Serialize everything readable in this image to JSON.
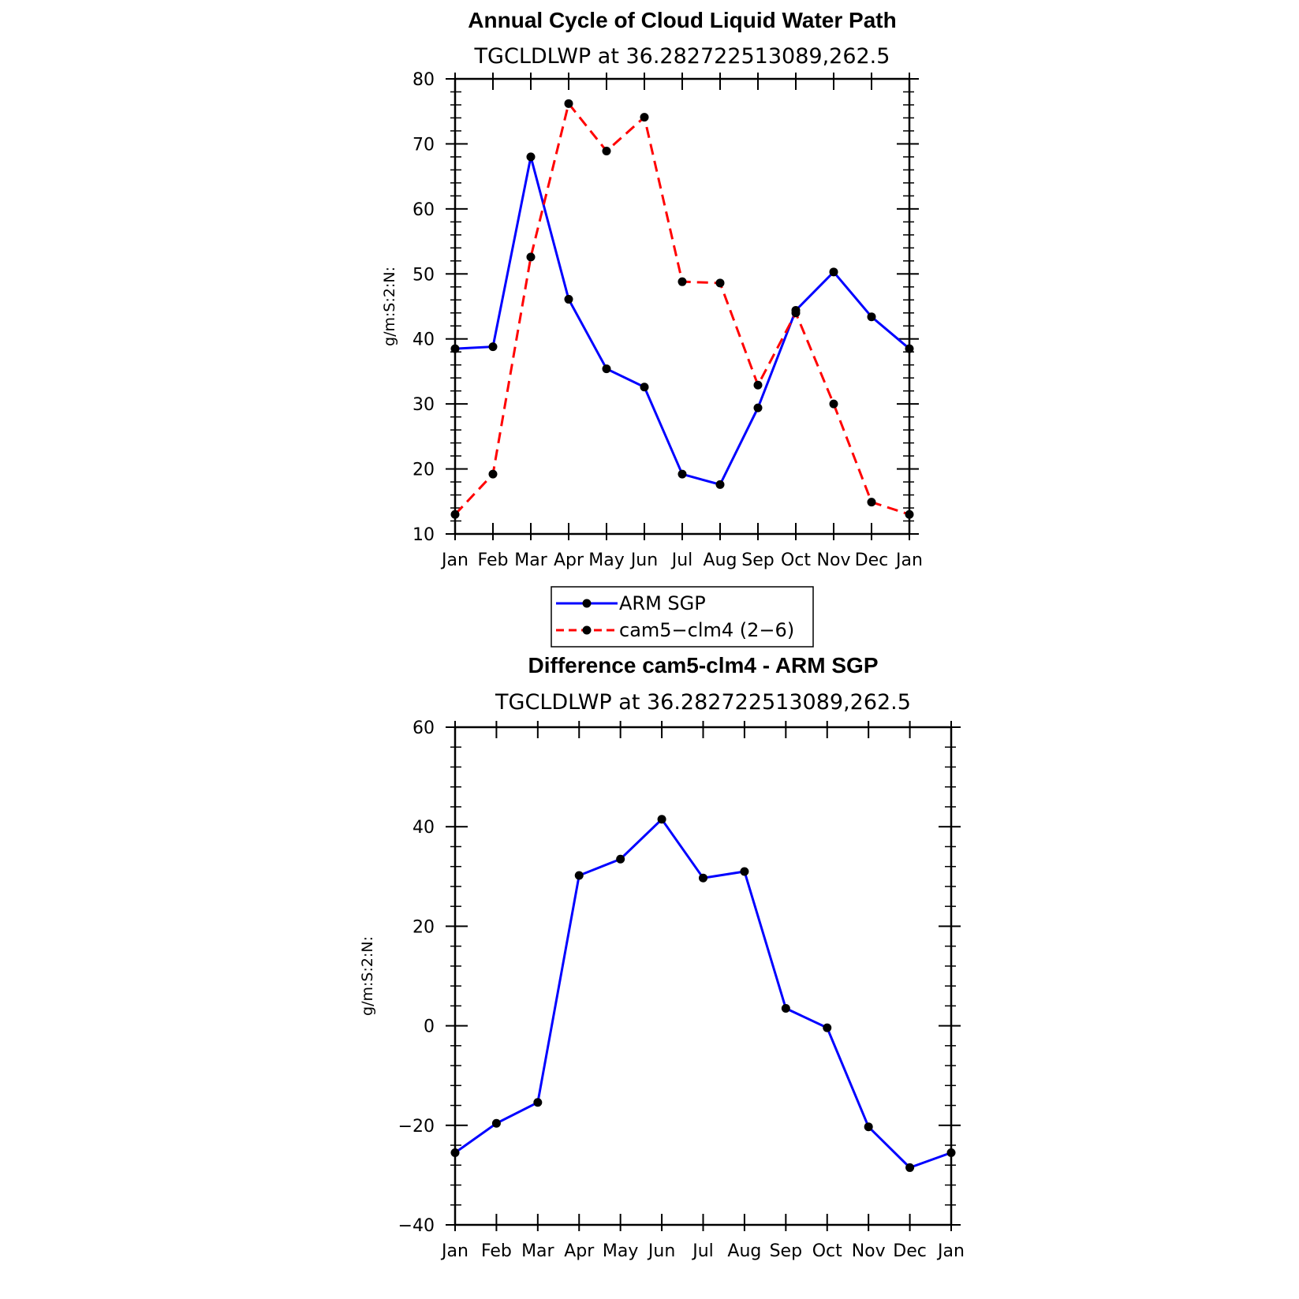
{
  "chart_data": [
    {
      "type": "line",
      "title": "Annual Cycle of Cloud Liquid Water Path",
      "subtitle": "TGCLDLWP at 36.282722513089,262.5",
      "xlabel": "",
      "ylabel": "g/m:S:2:N:",
      "categories": [
        "Jan",
        "Feb",
        "Mar",
        "Apr",
        "May",
        "Jun",
        "Jul",
        "Aug",
        "Sep",
        "Oct",
        "Nov",
        "Dec",
        "Jan"
      ],
      "ylim": [
        10,
        80
      ],
      "yticks": [
        10,
        20,
        30,
        40,
        50,
        60,
        70,
        80
      ],
      "series": [
        {
          "name": "ARM SGP",
          "color": "#0000ff",
          "dash": "solid",
          "values": [
            38.5,
            38.8,
            68.0,
            46.1,
            35.4,
            32.6,
            19.2,
            17.6,
            29.4,
            44.4,
            50.3,
            43.4,
            38.5
          ]
        },
        {
          "name": "cam5−clm4 (2−6)",
          "color": "#ff0000",
          "dash": "dashed",
          "values": [
            13.0,
            19.2,
            52.6,
            76.2,
            68.9,
            74.1,
            48.8,
            48.6,
            32.9,
            44.0,
            30.0,
            14.9,
            13.0
          ]
        }
      ],
      "legend": "below"
    },
    {
      "type": "line",
      "title": "Difference cam5-clm4 - ARM SGP",
      "subtitle": "TGCLDLWP at 36.282722513089,262.5",
      "xlabel": "",
      "ylabel": "g/m:S:2:N:",
      "categories": [
        "Jan",
        "Feb",
        "Mar",
        "Apr",
        "May",
        "Jun",
        "Jul",
        "Aug",
        "Sep",
        "Oct",
        "Nov",
        "Dec",
        "Jan"
      ],
      "ylim": [
        -40,
        60
      ],
      "yticks": [
        -40,
        -20,
        0,
        20,
        40,
        60
      ],
      "ytick_labels": [
        "−40",
        "−20",
        "0",
        "20",
        "40",
        "60"
      ],
      "series": [
        {
          "name": "",
          "color": "#0000ff",
          "dash": "solid",
          "values": [
            -25.5,
            -19.6,
            -15.4,
            30.2,
            33.5,
            41.5,
            29.7,
            31.0,
            3.5,
            -0.4,
            -20.3,
            -28.5,
            -25.5
          ]
        }
      ]
    }
  ]
}
